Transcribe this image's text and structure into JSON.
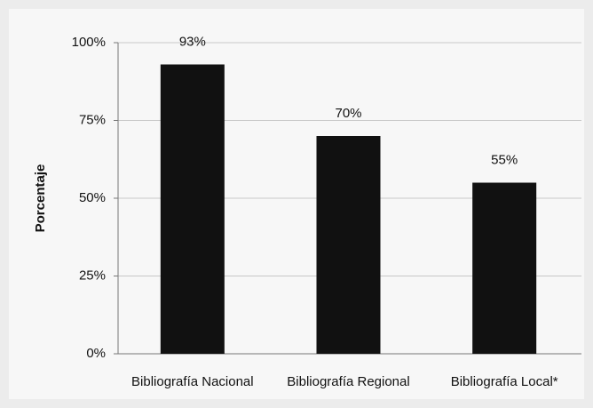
{
  "chart_data": {
    "type": "bar",
    "y_label": "Porcentaje",
    "categories": [
      "Bibliografía Nacional",
      "Bibliografía Regional",
      "Bibliografía Local*"
    ],
    "values": [
      93,
      70,
      55
    ],
    "value_labels": [
      "93%",
      "70%",
      "55%"
    ],
    "color": "#111111",
    "ylim": [
      0,
      100
    ],
    "yticks": [
      {
        "value": 0,
        "label": "0%"
      },
      {
        "value": 25,
        "label": "25%"
      },
      {
        "value": 50,
        "label": "50%"
      },
      {
        "value": 75,
        "label": "75%"
      },
      {
        "value": 100,
        "label": "100%"
      }
    ],
    "grid": true
  }
}
